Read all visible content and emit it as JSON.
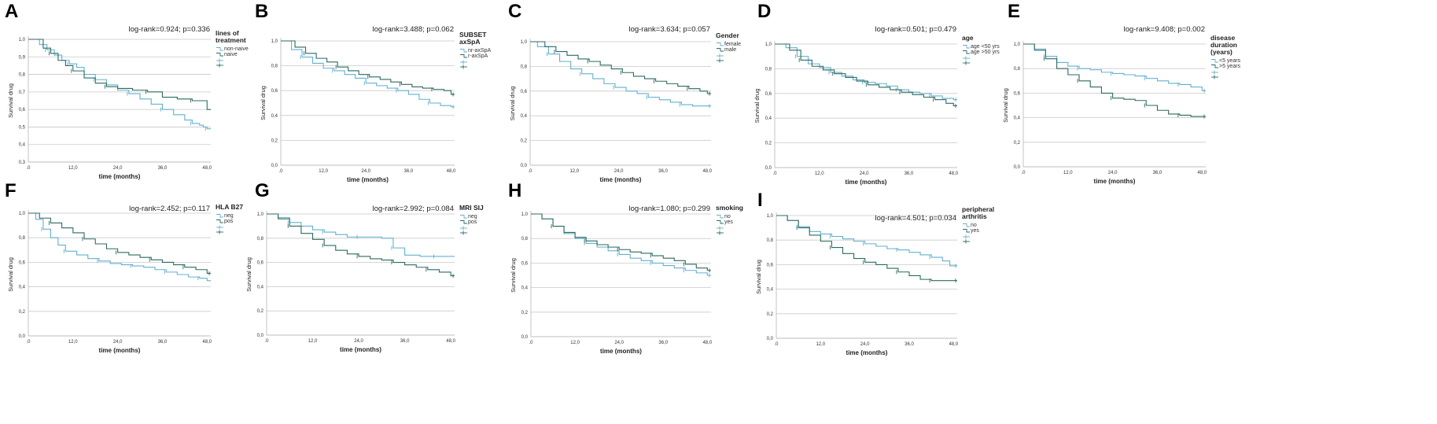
{
  "figure": {
    "colors": {
      "series1": "#62b0d0",
      "series2": "#2d6a60",
      "grid": "#c9c9c9",
      "axis": "#b5b5b5"
    },
    "x_ticks": [
      ".0",
      "12,0",
      "24,0",
      "36,0",
      "48,0"
    ],
    "y_ticks": [
      "0,0",
      "0,2",
      "0,4",
      "0,6",
      "0,8",
      "1,0"
    ],
    "a_y_ticks": [
      "0,3",
      "0,4",
      "0,5",
      "0,6",
      "0,7",
      "0,8",
      "0,9",
      "1,0"
    ]
  },
  "chart_data": [
    {
      "type": "line",
      "panel": "A",
      "stat": "log-rank=0.924; p=0.336",
      "legend_title": [
        "lines of",
        "treatment"
      ],
      "xlabel": "time (months)",
      "ylabel": "Survival drug",
      "xlim": [
        0,
        49
      ],
      "ylim": [
        0.3,
        1.0
      ],
      "series": [
        {
          "name": "non-naive",
          "x": [
            0,
            3,
            5,
            7,
            9,
            11,
            13,
            15,
            18,
            21,
            24,
            27,
            30,
            33,
            36,
            39,
            42,
            44,
            46,
            47,
            48,
            49
          ],
          "y": [
            1.0,
            0.97,
            0.94,
            0.91,
            0.88,
            0.86,
            0.84,
            0.8,
            0.77,
            0.74,
            0.71,
            0.69,
            0.66,
            0.63,
            0.6,
            0.57,
            0.54,
            0.52,
            0.51,
            0.5,
            0.49,
            0.49
          ]
        },
        {
          "name": "naive",
          "x": [
            0,
            4,
            6,
            8,
            10,
            12,
            15,
            18,
            21,
            24,
            28,
            32,
            36,
            40,
            44,
            48,
            49
          ],
          "y": [
            1.0,
            0.95,
            0.92,
            0.88,
            0.85,
            0.82,
            0.78,
            0.75,
            0.73,
            0.72,
            0.71,
            0.7,
            0.67,
            0.66,
            0.65,
            0.6,
            0.6
          ]
        }
      ]
    },
    {
      "type": "line",
      "panel": "B",
      "stat": "log-rank=3.488; p=0.062",
      "legend_title": [
        "SUBSET",
        "axSpA"
      ],
      "xlabel": "time (months)",
      "ylabel": "Survival drug",
      "xlim": [
        0,
        49
      ],
      "ylim": [
        0,
        1.0
      ],
      "series": [
        {
          "name": "nr-axSpA",
          "x": [
            0,
            3,
            6,
            9,
            12,
            15,
            18,
            21,
            24,
            27,
            30,
            33,
            36,
            39,
            42,
            45,
            48,
            49
          ],
          "y": [
            1.0,
            0.93,
            0.87,
            0.82,
            0.78,
            0.76,
            0.73,
            0.7,
            0.66,
            0.64,
            0.62,
            0.6,
            0.57,
            0.53,
            0.5,
            0.48,
            0.47,
            0.47
          ]
        },
        {
          "name": "r-axSpA",
          "x": [
            0,
            4,
            7,
            10,
            13,
            16,
            19,
            22,
            25,
            28,
            31,
            34,
            37,
            40,
            43,
            46,
            48,
            49
          ],
          "y": [
            1.0,
            0.95,
            0.9,
            0.86,
            0.83,
            0.79,
            0.76,
            0.73,
            0.71,
            0.69,
            0.67,
            0.65,
            0.63,
            0.62,
            0.61,
            0.6,
            0.57,
            0.57
          ]
        }
      ]
    },
    {
      "type": "line",
      "panel": "C",
      "stat": "log-rank=3.634; p=0.057",
      "legend_title": [
        "Gender"
      ],
      "xlabel": "time (months)",
      "ylabel": "Survival drug",
      "xlim": [
        0,
        49
      ],
      "ylim": [
        0,
        1.0
      ],
      "series": [
        {
          "name": "female",
          "x": [
            0,
            2,
            5,
            8,
            11,
            14,
            17,
            20,
            23,
            26,
            29,
            32,
            35,
            38,
            41,
            44,
            47,
            49
          ],
          "y": [
            1.0,
            0.96,
            0.9,
            0.84,
            0.78,
            0.74,
            0.7,
            0.66,
            0.63,
            0.6,
            0.58,
            0.55,
            0.53,
            0.51,
            0.49,
            0.48,
            0.48,
            0.48
          ]
        },
        {
          "name": "male",
          "x": [
            0,
            4,
            7,
            10,
            13,
            16,
            19,
            22,
            25,
            28,
            31,
            34,
            37,
            40,
            43,
            46,
            48,
            49
          ],
          "y": [
            1.0,
            0.96,
            0.92,
            0.89,
            0.86,
            0.84,
            0.81,
            0.78,
            0.75,
            0.72,
            0.7,
            0.68,
            0.66,
            0.64,
            0.62,
            0.6,
            0.58,
            0.58
          ]
        }
      ]
    },
    {
      "type": "line",
      "panel": "D",
      "stat": "log-rank=0.501; p=0.479",
      "legend_title": [
        "age"
      ],
      "xlabel": "time (months)",
      "ylabel": "Survival drug",
      "xlim": [
        0,
        49
      ],
      "ylim": [
        0,
        1.0
      ],
      "series": [
        {
          "name": "age <50 yrs",
          "x": [
            0,
            3,
            6,
            9,
            12,
            15,
            18,
            21,
            24,
            27,
            30,
            33,
            36,
            39,
            42,
            45,
            48,
            49
          ],
          "y": [
            1.0,
            0.97,
            0.9,
            0.84,
            0.81,
            0.77,
            0.74,
            0.71,
            0.69,
            0.68,
            0.66,
            0.63,
            0.61,
            0.6,
            0.58,
            0.56,
            0.55,
            0.55
          ]
        },
        {
          "name": "age >50 yrs",
          "x": [
            0,
            4,
            7,
            10,
            13,
            16,
            19,
            22,
            25,
            28,
            31,
            34,
            37,
            40,
            43,
            46,
            48,
            49
          ],
          "y": [
            1.0,
            0.95,
            0.87,
            0.82,
            0.79,
            0.76,
            0.73,
            0.7,
            0.67,
            0.65,
            0.63,
            0.61,
            0.59,
            0.57,
            0.55,
            0.52,
            0.5,
            0.5
          ]
        }
      ]
    },
    {
      "type": "line",
      "panel": "E",
      "stat": "log-rank=9.408; p=0.002",
      "legend_title": [
        "disease",
        "duration",
        "(years)"
      ],
      "xlabel": "time (months)",
      "ylabel": "Survival drug",
      "xlim": [
        0,
        49
      ],
      "ylim": [
        0,
        1.0
      ],
      "series": [
        {
          "name": "<5 years",
          "x": [
            0,
            3,
            6,
            9,
            12,
            15,
            18,
            21,
            24,
            27,
            30,
            33,
            36,
            39,
            42,
            45,
            48,
            49
          ],
          "y": [
            1.0,
            0.96,
            0.9,
            0.85,
            0.82,
            0.8,
            0.79,
            0.77,
            0.76,
            0.75,
            0.74,
            0.72,
            0.7,
            0.68,
            0.67,
            0.65,
            0.62,
            0.62
          ]
        },
        {
          "name": ">5 years",
          "x": [
            0,
            3,
            6,
            9,
            12,
            15,
            18,
            21,
            24,
            27,
            30,
            33,
            36,
            39,
            42,
            45,
            48,
            49
          ],
          "y": [
            1.0,
            0.95,
            0.88,
            0.8,
            0.75,
            0.7,
            0.65,
            0.6,
            0.56,
            0.55,
            0.54,
            0.5,
            0.46,
            0.43,
            0.42,
            0.41,
            0.41,
            0.41
          ]
        }
      ]
    },
    {
      "type": "line",
      "panel": "F",
      "stat": "log-rank=2.452; p=0.117",
      "legend_title": [
        "HLA B27"
      ],
      "xlabel": "time (months)",
      "ylabel": "Survival drug",
      "xlim": [
        0,
        49
      ],
      "ylim": [
        0,
        1.0
      ],
      "series": [
        {
          "name": "neg",
          "x": [
            0,
            2,
            4,
            6,
            8,
            10,
            13,
            16,
            19,
            22,
            25,
            28,
            31,
            34,
            37,
            40,
            43,
            46,
            48,
            49
          ],
          "y": [
            1.0,
            0.95,
            0.87,
            0.8,
            0.74,
            0.69,
            0.66,
            0.63,
            0.61,
            0.59,
            0.58,
            0.57,
            0.56,
            0.54,
            0.52,
            0.5,
            0.48,
            0.47,
            0.45,
            0.45
          ]
        },
        {
          "name": "pos",
          "x": [
            0,
            3,
            6,
            9,
            12,
            15,
            18,
            21,
            24,
            27,
            30,
            33,
            36,
            39,
            42,
            45,
            48,
            49
          ],
          "y": [
            1.0,
            0.96,
            0.92,
            0.88,
            0.84,
            0.79,
            0.75,
            0.71,
            0.68,
            0.66,
            0.64,
            0.62,
            0.6,
            0.58,
            0.56,
            0.54,
            0.51,
            0.51
          ]
        }
      ]
    },
    {
      "type": "line",
      "panel": "G",
      "stat": "log-rank=2.992; p=0.084",
      "legend_title": [
        "MRI SIJ"
      ],
      "xlabel": "time (months)",
      "ylabel": "Survival drug",
      "xlim": [
        0,
        49
      ],
      "ylim": [
        0,
        1.0
      ],
      "series": [
        {
          "name": "neg",
          "x": [
            0,
            3,
            6,
            9,
            12,
            15,
            18,
            21,
            24,
            27,
            30,
            33,
            36,
            40,
            44,
            48,
            49
          ],
          "y": [
            1.0,
            0.97,
            0.93,
            0.9,
            0.87,
            0.85,
            0.83,
            0.81,
            0.81,
            0.81,
            0.8,
            0.72,
            0.66,
            0.65,
            0.65,
            0.65,
            0.65
          ]
        },
        {
          "name": "pos",
          "x": [
            0,
            3,
            6,
            9,
            12,
            15,
            18,
            21,
            24,
            27,
            30,
            33,
            36,
            39,
            42,
            45,
            48,
            49
          ],
          "y": [
            1.0,
            0.96,
            0.9,
            0.84,
            0.79,
            0.74,
            0.7,
            0.67,
            0.65,
            0.63,
            0.62,
            0.6,
            0.58,
            0.56,
            0.54,
            0.52,
            0.49,
            0.49
          ]
        }
      ]
    },
    {
      "type": "line",
      "panel": "H",
      "stat": "log-rank=1.080; p=0.299",
      "legend_title": [
        "smoking"
      ],
      "xlabel": "time (months)",
      "ylabel": "Survival drug",
      "xlim": [
        0,
        49
      ],
      "ylim": [
        0,
        1.0
      ],
      "series": [
        {
          "name": "no",
          "x": [
            0,
            3,
            6,
            9,
            12,
            15,
            18,
            21,
            24,
            27,
            30,
            33,
            36,
            39,
            42,
            45,
            48,
            49
          ],
          "y": [
            1.0,
            0.96,
            0.9,
            0.84,
            0.8,
            0.76,
            0.73,
            0.7,
            0.67,
            0.64,
            0.62,
            0.6,
            0.58,
            0.56,
            0.54,
            0.52,
            0.5,
            0.5
          ]
        },
        {
          "name": "yes",
          "x": [
            0,
            3,
            6,
            9,
            12,
            15,
            18,
            21,
            24,
            27,
            30,
            33,
            36,
            39,
            42,
            45,
            48,
            49
          ],
          "y": [
            1.0,
            0.96,
            0.9,
            0.85,
            0.81,
            0.78,
            0.75,
            0.73,
            0.71,
            0.69,
            0.68,
            0.66,
            0.64,
            0.62,
            0.59,
            0.56,
            0.54,
            0.54
          ]
        }
      ]
    },
    {
      "type": "line",
      "panel": "I",
      "stat": "log-rank=4.501; p=0.034",
      "legend_title": [
        "peripheral",
        "arthritis"
      ],
      "xlabel": "time (months)",
      "ylabel": "Survival drug",
      "xlim": [
        0,
        49
      ],
      "ylim": [
        0,
        1.0
      ],
      "series": [
        {
          "name": "no",
          "x": [
            0,
            3,
            6,
            9,
            12,
            15,
            18,
            21,
            24,
            27,
            30,
            33,
            36,
            39,
            42,
            45,
            47,
            49
          ],
          "y": [
            1.0,
            0.96,
            0.91,
            0.87,
            0.85,
            0.83,
            0.81,
            0.79,
            0.77,
            0.75,
            0.73,
            0.72,
            0.7,
            0.68,
            0.66,
            0.63,
            0.59,
            0.59
          ]
        },
        {
          "name": "yes",
          "x": [
            0,
            3,
            6,
            9,
            12,
            15,
            18,
            21,
            24,
            27,
            30,
            33,
            36,
            39,
            42,
            45,
            48,
            49
          ],
          "y": [
            1.0,
            0.96,
            0.9,
            0.84,
            0.79,
            0.74,
            0.69,
            0.65,
            0.62,
            0.6,
            0.57,
            0.54,
            0.51,
            0.48,
            0.47,
            0.47,
            0.47,
            0.47
          ]
        }
      ]
    }
  ]
}
